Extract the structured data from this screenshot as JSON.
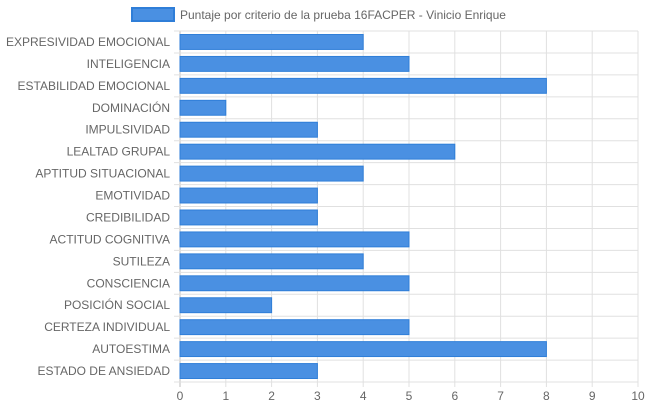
{
  "chart_data": {
    "type": "bar",
    "orientation": "horizontal",
    "categories": [
      "EXPRESIVIDAD EMOCIONAL",
      "INTELIGENCIA",
      "ESTABILIDAD EMOCIONAL",
      "DOMINACIÓN",
      "IMPULSIVIDAD",
      "LEALTAD GRUPAL",
      "APTITUD SITUACIONAL",
      "EMOTIVIDAD",
      "CREDIBILIDAD",
      "ACTITUD COGNITIVA",
      "SUTILEZA",
      "CONSCIENCIA",
      "POSICIÓN SOCIAL",
      "CERTEZA INDIVIDUAL",
      "AUTOESTIMA",
      "ESTADO DE ANSIEDAD"
    ],
    "series": [
      {
        "name": "Puntaje por criterio de la prueba 16FACPER - Vinicio Enrique",
        "values": [
          4,
          5,
          8,
          1,
          3,
          6,
          4,
          3,
          3,
          5,
          4,
          5,
          2,
          5,
          8,
          3
        ],
        "color": "#4a90e2",
        "border_color": "#2f7ed8"
      }
    ],
    "xlim": [
      0,
      10
    ],
    "xticks": [
      "0",
      "1",
      "2",
      "3",
      "4",
      "5",
      "6",
      "7",
      "8",
      "9",
      "10"
    ],
    "grid": true,
    "grid_color": "#e0e0e0",
    "legend_position": "top-center"
  }
}
